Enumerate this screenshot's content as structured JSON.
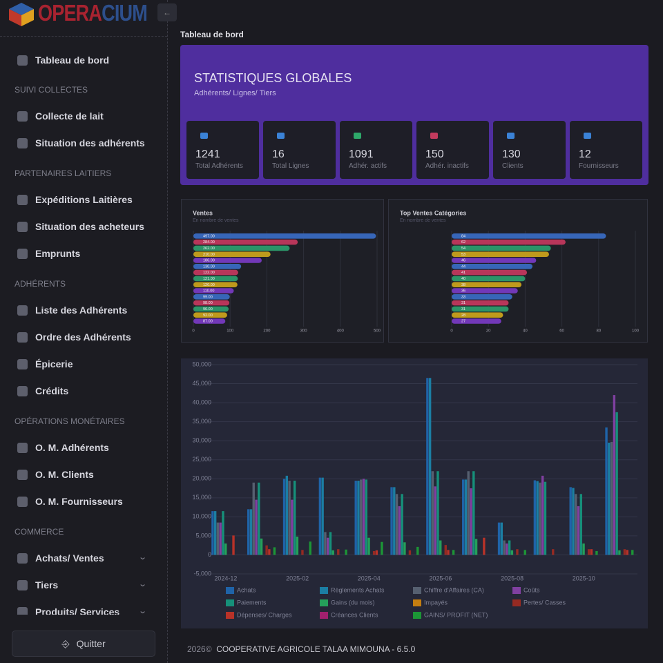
{
  "header": {
    "brand": {
      "first": "OPERA",
      "second": "CIUM"
    }
  },
  "sidebar": {
    "top": {
      "label": "Tableau de bord"
    },
    "sections": [
      {
        "heading": "SUIVI COLLECTES",
        "items": [
          {
            "label": "Collecte de lait"
          },
          {
            "label": "Situation des adhérents"
          }
        ]
      },
      {
        "heading": "PARTENAIRES LAITIERS",
        "items": [
          {
            "label": "Expéditions Laitières"
          },
          {
            "label": "Situation des acheteurs"
          },
          {
            "label": "Emprunts"
          }
        ]
      },
      {
        "heading": "ADHÉRENTS",
        "items": [
          {
            "label": "Liste des Adhérents"
          },
          {
            "label": "Ordre des Adhérents"
          },
          {
            "label": "Épicerie"
          },
          {
            "label": "Crédits"
          }
        ]
      },
      {
        "heading": "OPÉRATIONS MONÉTAIRES",
        "items": [
          {
            "label": "O. M. Adhérents"
          },
          {
            "label": "O. M. Clients"
          },
          {
            "label": "O. M. Fournisseurs"
          }
        ]
      },
      {
        "heading": "COMMERCE",
        "items": [
          {
            "label": "Achats/ Ventes",
            "expandable": true
          },
          {
            "label": "Tiers",
            "expandable": true
          },
          {
            "label": "Produits/ Services",
            "expandable": true
          }
        ]
      }
    ],
    "logout": "Quitter"
  },
  "page_title": "Tableau de bord",
  "stats": {
    "title": "STATISTIQUES GLOBALES",
    "subtitle": "Adhérents/ Lignes/ Tiers",
    "cards": [
      {
        "value": 1241,
        "label": "Total Adhérents"
      },
      {
        "value": 16,
        "label": "Total Lignes"
      },
      {
        "value": 1091,
        "label": "Adhér. actifs"
      },
      {
        "value": 150,
        "label": "Adhér. inactifs"
      },
      {
        "value": 130,
        "label": "Clients"
      },
      {
        "value": 12,
        "label": "Fournisseurs"
      }
    ]
  },
  "chart_data": [
    {
      "type": "bar",
      "orientation": "horizontal",
      "title": "Ventes",
      "subtitle": "En nombre de ventes",
      "values": [
        497,
        284,
        262,
        210,
        186,
        130,
        122,
        121,
        120,
        110,
        99,
        98,
        96,
        92,
        87
      ],
      "value_labels": [
        "497.00",
        "284.00",
        "262.00",
        "210.00",
        "186.00",
        "130.00",
        "122.00",
        "121.00",
        "120.00",
        "110.00",
        "99.00",
        "98.00",
        "96.00",
        "92.00",
        "87.00"
      ],
      "colors": [
        "#3766b8",
        "#b8365a",
        "#2c9468",
        "#bf9a1c",
        "#7238b8"
      ],
      "xlim": [
        0,
        500
      ],
      "xticks": [
        0,
        100,
        200,
        300,
        400,
        500
      ],
      "grid": true
    },
    {
      "type": "bar",
      "orientation": "horizontal",
      "title": "Top Ventes Catégories",
      "subtitle": "En nombre de ventes",
      "values": [
        84,
        62,
        54,
        53,
        46,
        44,
        41,
        40,
        38,
        36,
        33,
        31,
        31,
        28,
        27
      ],
      "colors": [
        "#3766b8",
        "#b8365a",
        "#2c9468",
        "#bf9a1c",
        "#7238b8"
      ],
      "xlim": [
        0,
        100
      ],
      "xticks": [
        0,
        20,
        40,
        60,
        80,
        100
      ],
      "grid": true
    },
    {
      "type": "grouped-bar",
      "categories": [
        "2024-12",
        null,
        "2025-02",
        null,
        "2025-04",
        null,
        "2025-06",
        null,
        "2025-08",
        null,
        "2025-10",
        null
      ],
      "series": [
        {
          "name": "Achats",
          "color": "#1f63a8",
          "values": [
            11500,
            12000,
            20000,
            20300,
            19500,
            17800,
            46500,
            19800,
            8500,
            19600,
            17800,
            33500
          ]
        },
        {
          "name": "Règlements Achats",
          "color": "#1b7ea3",
          "values": [
            11500,
            12000,
            20800,
            20300,
            19500,
            17800,
            46500,
            19800,
            8500,
            19400,
            17600,
            29500
          ]
        },
        {
          "name": "Chiffre d'Affaires (CA)",
          "color": "#566070",
          "values": [
            8500,
            19000,
            19500,
            6000,
            19800,
            16000,
            22000,
            22000,
            3800,
            19000,
            16000,
            29700
          ]
        },
        {
          "name": "Coûts",
          "color": "#8040a0",
          "values": [
            8500,
            14500,
            14500,
            4500,
            20000,
            12800,
            18000,
            17500,
            3000,
            20800,
            12800,
            42000
          ]
        },
        {
          "name": "Paiements",
          "color": "#16907a",
          "values": [
            11500,
            19000,
            19500,
            6000,
            19800,
            16000,
            22000,
            22000,
            3800,
            19200,
            16000,
            37500
          ]
        },
        {
          "name": "Gains (du mois)",
          "color": "#25a05a",
          "values": [
            3000,
            4300,
            4800,
            1200,
            4500,
            3300,
            3800,
            4200,
            1200,
            0,
            3000,
            1200
          ]
        },
        {
          "name": "Impayés",
          "color": "#c47e10",
          "values": [
            0,
            0,
            0,
            0,
            0,
            0,
            0,
            0,
            0,
            0,
            0,
            0
          ]
        },
        {
          "name": "Pertes/ Casses",
          "color": "#962a22",
          "values": [
            0,
            2500,
            1300,
            1500,
            1000,
            1200,
            2600,
            0,
            1500,
            1500,
            1500,
            1500
          ]
        },
        {
          "name": "Dépenses/ Charges",
          "color": "#b83228",
          "values": [
            5100,
            1500,
            0,
            0,
            1200,
            0,
            1300,
            4500,
            0,
            0,
            1500,
            1300
          ]
        },
        {
          "name": "Créances Clients",
          "color": "#a0206e",
          "values": [
            0,
            0,
            0,
            0,
            0,
            0,
            0,
            0,
            0,
            0,
            0,
            0
          ]
        },
        {
          "name": "GAINS/ PROFIT (NET)",
          "color": "#1c9636",
          "values": [
            0,
            2000,
            3500,
            1400,
            3400,
            2100,
            1300,
            0,
            1300,
            0,
            1000,
            1300
          ]
        }
      ],
      "ylim": [
        -5000,
        50000
      ],
      "yticks": [
        {
          "value": -5000,
          "label": "-5,000"
        },
        0,
        {
          "value": 5000,
          "label": "5,000"
        },
        {
          "value": 10000,
          "label": "10,000"
        },
        {
          "value": 15000,
          "label": "15,000"
        },
        {
          "value": 20000,
          "label": "20,000"
        },
        {
          "value": 25000,
          "label": "25,000"
        },
        {
          "value": 30000,
          "label": "30,000"
        },
        {
          "value": 35000,
          "label": "35,000"
        },
        {
          "value": 40000,
          "label": "40,000"
        },
        {
          "value": 45000,
          "label": "45,000"
        },
        {
          "value": 50000,
          "label": "50,000"
        }
      ],
      "grid": true
    }
  ],
  "footer": {
    "year": "2026©",
    "text": "COOPERATIVE AGRICOLE TALAA MIMOUNA - 6.5.0"
  }
}
